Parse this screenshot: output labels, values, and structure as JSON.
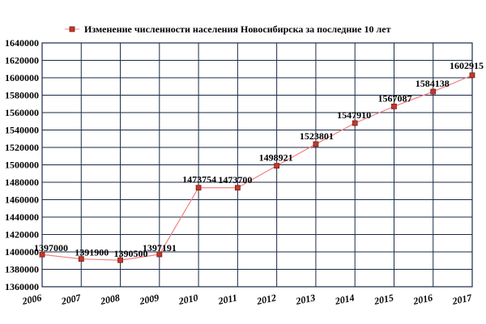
{
  "chart_data": {
    "type": "line",
    "title": "",
    "xlabel": "",
    "ylabel": "",
    "x": [
      "2006",
      "2007",
      "2008",
      "2009",
      "2010",
      "2011",
      "2012",
      "2013",
      "2014",
      "2015",
      "2016",
      "2017"
    ],
    "series": [
      {
        "name": "Изменение численности населения Новосибирска за последние 10 лет",
        "values": [
          1397000,
          1391900,
          1390500,
          1397191,
          1473754,
          1473700,
          1498921,
          1523801,
          1547910,
          1567087,
          1584138,
          1602915
        ],
        "labels": [
          "1397000",
          "1391900",
          "1390500",
          "1397191",
          "1473754",
          "1473700",
          "1498921",
          "1523801",
          "1547910",
          "1567087",
          "1584138",
          "1602915"
        ],
        "line_color": "#f08080",
        "marker_color": "#c0392b"
      }
    ],
    "ylim": [
      1360000,
      1640000
    ],
    "yticks": [
      "1360000",
      "1380000",
      "1400000",
      "1420000",
      "1440000",
      "1460000",
      "1480000",
      "1500000",
      "1520000",
      "1540000",
      "1560000",
      "1580000",
      "1600000",
      "1620000",
      "1640000"
    ],
    "grid": true,
    "legend": "top-left"
  }
}
